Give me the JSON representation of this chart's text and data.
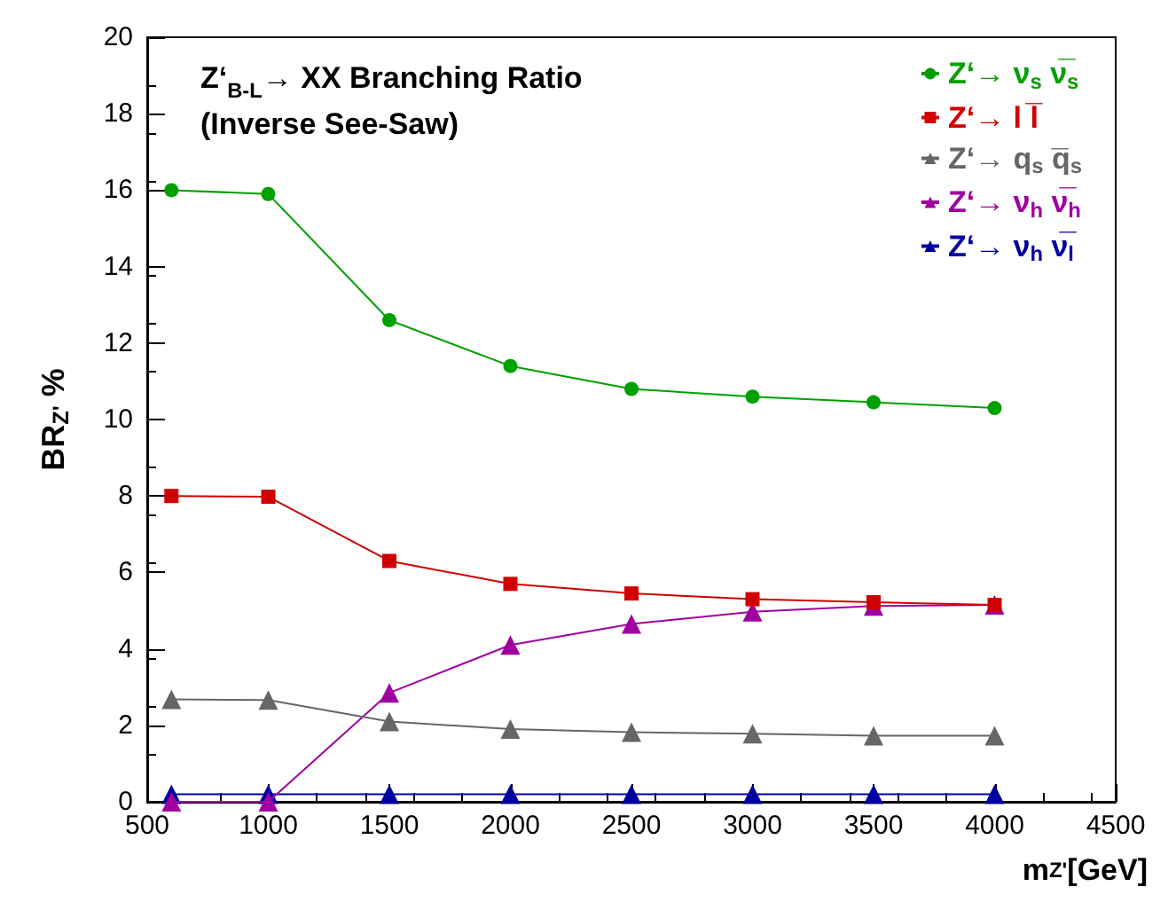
{
  "chart_data": {
    "type": "line",
    "title": "Z‘$_{B-L}$→ XX Branching Ratio",
    "subtitle": "(Inverse See-Saw)",
    "xlabel": "m$_{Z'}$[GeV]",
    "ylabel": "BR$_{Z'}$ %",
    "x": [
      600,
      1000,
      1500,
      2000,
      2500,
      3000,
      3500,
      4000
    ],
    "xlim": [
      500,
      4500
    ],
    "xticks": [
      500,
      1000,
      1500,
      2000,
      2500,
      3000,
      3500,
      4000,
      4500
    ],
    "ylim": [
      0,
      20
    ],
    "yticks": [
      0,
      2,
      4,
      6,
      8,
      10,
      12,
      14,
      16,
      18,
      20
    ],
    "grid": false,
    "legend": "top right",
    "line_style": "solid",
    "series": [
      {
        "name": "Z‘→ ν$_{s}$ ν̅$_{s}$",
        "color": "#00a000",
        "marker": "circle",
        "values": [
          16.0,
          15.9,
          12.6,
          11.4,
          10.8,
          10.6,
          10.45,
          10.3
        ]
      },
      {
        "name": "Z‘→ l l̅",
        "color": "#d00000",
        "marker": "square",
        "values": [
          8.0,
          7.98,
          6.3,
          5.7,
          5.45,
          5.3,
          5.22,
          5.15
        ]
      },
      {
        "name": "Z‘→ q$_{s}$ q̅$_{s}$",
        "color": "#666666",
        "marker": "triangle",
        "values": [
          2.68,
          2.66,
          2.1,
          1.9,
          1.82,
          1.78,
          1.73,
          1.73
        ]
      },
      {
        "name": "Z‘→ ν$_{h}$ ν̅$_{h}$",
        "color": "#a000a0",
        "marker": "triangle",
        "values": [
          0,
          0,
          2.85,
          4.1,
          4.65,
          4.97,
          5.12,
          5.15
        ]
      },
      {
        "name": "Z‘→ ν$_{h}$ ν̅$_{l}$",
        "color": "#0000a0",
        "marker": "triangle",
        "values": [
          0.2,
          0.2,
          0.2,
          0.2,
          0.2,
          0.2,
          0.2,
          0.2
        ]
      }
    ]
  }
}
